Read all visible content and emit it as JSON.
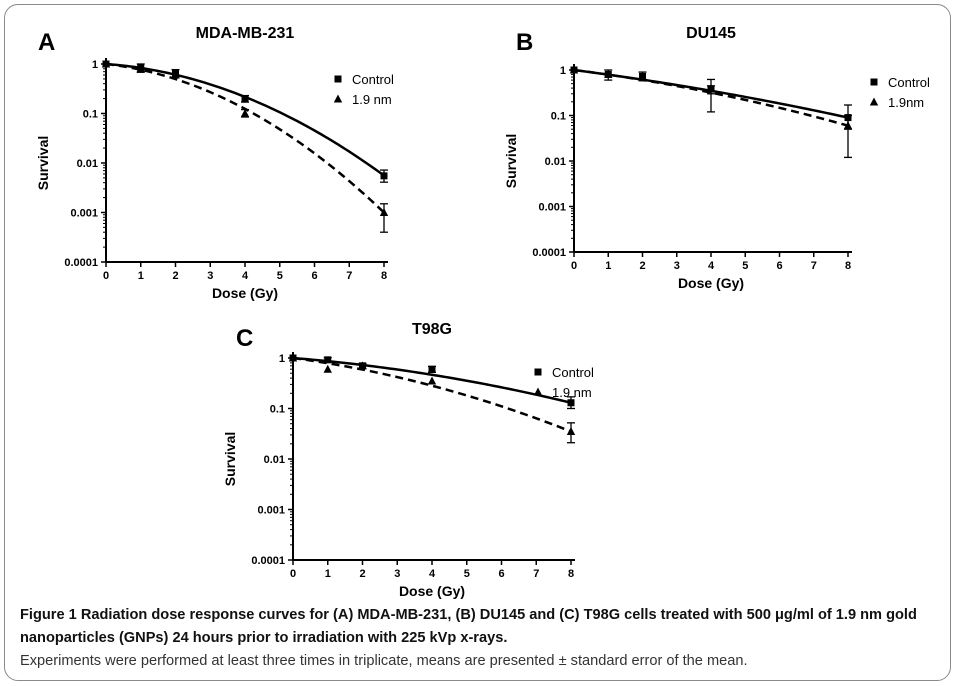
{
  "caption": {
    "heading": "Figure 1",
    "bold_text": " Radiation dose response curves for (A) MDA-MB-231, (B) DU145 and (C) T98G cells treated with 500 μg/ml of 1.9 nm gold nanoparticles (GNPs) 24 hours prior to irradiation with 225 kVp x-rays.",
    "normal_text": "Experiments were performed at least three times in triplicate, means are presented ± standard error of the mean."
  },
  "chart_data": [
    {
      "panel": "A",
      "type": "line",
      "title": "MDA-MB-231",
      "xlabel": "Dose (Gy)",
      "ylabel": "Survival",
      "yscale": "log",
      "xlim": [
        0,
        8
      ],
      "ylim": [
        0.0001,
        1
      ],
      "x_ticks": [
        "0",
        "1",
        "2",
        "3",
        "4",
        "5",
        "6",
        "7",
        "8"
      ],
      "y_ticks": [
        "1",
        "0.1",
        "0.01",
        "0.001",
        "0.0001"
      ],
      "legend_position": "top-right",
      "series": [
        {
          "name": "Control",
          "marker": "square",
          "line": "solid",
          "x": [
            0,
            1,
            2,
            4,
            8
          ],
          "y": [
            1,
            0.85,
            0.65,
            0.2,
            0.0055
          ],
          "err_low": [
            1,
            0.68,
            0.53,
            0.17,
            0.0041
          ],
          "err_high": [
            1,
            1.0,
            0.77,
            0.23,
            0.0072
          ],
          "fit": {
            "alpha": 0.1167,
            "beta": 0.0665
          }
        },
        {
          "name": "1.9 nm",
          "marker": "triangle",
          "line": "dashed",
          "x": [
            0,
            1,
            2,
            4,
            8
          ],
          "y": [
            1,
            0.8,
            0.6,
            0.1,
            0.001
          ],
          "err_low": [
            1,
            0.8,
            0.6,
            0.085,
            0.0004
          ],
          "err_high": [
            1,
            0.8,
            0.6,
            0.12,
            0.0015
          ],
          "fit": {
            "alpha": 0.1803,
            "beta": 0.0854
          }
        }
      ]
    },
    {
      "panel": "B",
      "type": "line",
      "title": "DU145",
      "xlabel": "Dose (Gy)",
      "ylabel": "Survival",
      "yscale": "log",
      "xlim": [
        0,
        8
      ],
      "ylim": [
        0.0001,
        1
      ],
      "x_ticks": [
        "0",
        "1",
        "2",
        "3",
        "4",
        "5",
        "6",
        "7",
        "8"
      ],
      "y_ticks": [
        "1",
        "0.1",
        "0.01",
        "0.001",
        "0.0001"
      ],
      "legend_position": "top-right",
      "series": [
        {
          "name": "Control",
          "marker": "square",
          "line": "solid",
          "x": [
            0,
            1,
            2,
            4,
            8
          ],
          "y": [
            1,
            0.8,
            0.72,
            0.38,
            0.09
          ],
          "err_low": [
            1,
            0.6,
            0.58,
            0.3,
            0.05
          ],
          "err_high": [
            1,
            1.0,
            0.9,
            0.62,
            0.17
          ],
          "fit": {
            "alpha": 0.225,
            "beta": 0.0095
          }
        },
        {
          "name": "1.9nm",
          "marker": "triangle",
          "line": "dashed",
          "x": [
            0,
            1,
            2,
            4,
            8
          ],
          "y": [
            1,
            0.8,
            0.72,
            0.4,
            0.06
          ],
          "err_low": [
            1,
            0.8,
            0.72,
            0.12,
            0.012
          ],
          "err_high": [
            1,
            0.8,
            0.72,
            0.45,
            0.1
          ],
          "fit": {
            "alpha": 0.22,
            "beta": 0.0165
          }
        }
      ]
    },
    {
      "panel": "C",
      "type": "line",
      "title": "T98G",
      "xlabel": "Dose (Gy)",
      "ylabel": "Survival",
      "yscale": "log",
      "xlim": [
        0,
        8
      ],
      "ylim": [
        0.0001,
        1
      ],
      "x_ticks": [
        "0",
        "1",
        "2",
        "3",
        "4",
        "5",
        "6",
        "7",
        "8"
      ],
      "y_ticks": [
        "1",
        "0.1",
        "0.01",
        "0.001",
        "0.0001"
      ],
      "legend_position": "top-right",
      "series": [
        {
          "name": "Control",
          "marker": "square",
          "line": "solid",
          "x": [
            0,
            1,
            2,
            4,
            8
          ],
          "y": [
            1,
            0.92,
            0.7,
            0.6,
            0.13
          ],
          "err_low": [
            1,
            0.82,
            0.62,
            0.52,
            0.1
          ],
          "err_high": [
            1,
            1.02,
            0.78,
            0.68,
            0.17
          ],
          "fit": {
            "alpha": 0.1277,
            "beta": 0.0159
          }
        },
        {
          "name": "1.9 nm",
          "marker": "triangle",
          "line": "dashed",
          "x": [
            0,
            1,
            2,
            4,
            8
          ],
          "y": [
            1,
            0.6,
            0.7,
            0.35,
            0.035
          ],
          "err_low": [
            1,
            0.6,
            0.7,
            0.35,
            0.021
          ],
          "err_high": [
            1,
            0.6,
            0.7,
            0.35,
            0.052
          ],
          "fit": {
            "alpha": 0.2125,
            "beta": 0.0258
          }
        }
      ]
    }
  ]
}
